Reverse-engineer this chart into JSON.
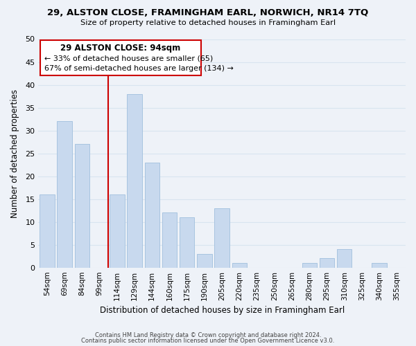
{
  "title": "29, ALSTON CLOSE, FRAMINGHAM EARL, NORWICH, NR14 7TQ",
  "subtitle": "Size of property relative to detached houses in Framingham Earl",
  "xlabel": "Distribution of detached houses by size in Framingham Earl",
  "ylabel": "Number of detached properties",
  "bar_color": "#c8d9ee",
  "bar_edge_color": "#a8c4e0",
  "categories": [
    "54sqm",
    "69sqm",
    "84sqm",
    "99sqm",
    "114sqm",
    "129sqm",
    "144sqm",
    "160sqm",
    "175sqm",
    "190sqm",
    "205sqm",
    "220sqm",
    "235sqm",
    "250sqm",
    "265sqm",
    "280sqm",
    "295sqm",
    "310sqm",
    "325sqm",
    "340sqm",
    "355sqm"
  ],
  "values": [
    16,
    32,
    27,
    0,
    16,
    38,
    23,
    12,
    11,
    3,
    13,
    1,
    0,
    0,
    0,
    1,
    2,
    4,
    0,
    1,
    0
  ],
  "ylim": [
    0,
    50
  ],
  "yticks": [
    0,
    5,
    10,
    15,
    20,
    25,
    30,
    35,
    40,
    45,
    50
  ],
  "vline_color": "#cc0000",
  "vline_pos": 3.5,
  "annotation_title": "29 ALSTON CLOSE: 94sqm",
  "annotation_line1": "← 33% of detached houses are smaller (65)",
  "annotation_line2": "67% of semi-detached houses are larger (134) →",
  "annotation_box_color": "#ffffff",
  "annotation_box_edge": "#cc0000",
  "footer1": "Contains HM Land Registry data © Crown copyright and database right 2024.",
  "footer2": "Contains public sector information licensed under the Open Government Licence v3.0.",
  "grid_color": "#d8e4f0",
  "background_color": "#eef2f8"
}
